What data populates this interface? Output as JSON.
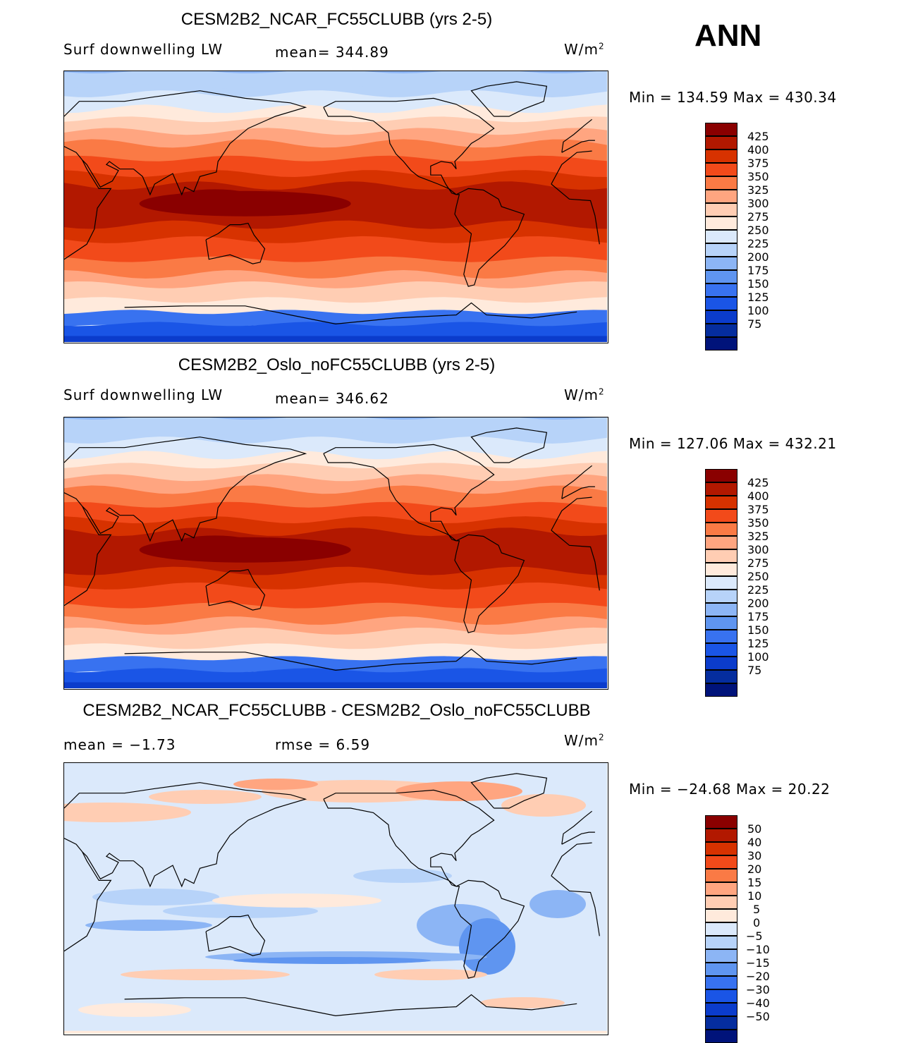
{
  "season": "ANN",
  "panels": [
    {
      "title": "CESM2B2_NCAR_FC55CLUBB (yrs 2-5)",
      "left_label": "Surf downwelling LW",
      "center_label": "mean= 344.89",
      "units": "W/m",
      "units_sup": "2",
      "minmax": "Min = 134.59 Max = 430.34",
      "cbar_colors": [
        "#8a0000",
        "#b21800",
        "#d73200",
        "#f24a1a",
        "#fa7a45",
        "#ffa580",
        "#ffcdb3",
        "#ffeadc",
        "#dbe9fb",
        "#b7d3f9",
        "#8cb5f5",
        "#5f95f0",
        "#3872f0",
        "#1a55e6",
        "#0b3ccc",
        "#052d9e",
        "#00137a"
      ],
      "cbar_labels": [
        "425",
        "400",
        "375",
        "350",
        "325",
        "300",
        "275",
        "250",
        "225",
        "200",
        "175",
        "150",
        "125",
        "100",
        "75"
      ],
      "map_style": "abs"
    },
    {
      "title": "CESM2B2_Oslo_noFC55CLUBB (yrs 2-5)",
      "left_label": "Surf downwelling LW",
      "center_label": "mean= 346.62",
      "units": "W/m",
      "units_sup": "2",
      "minmax": "Min = 127.06 Max = 432.21",
      "cbar_colors": [
        "#8a0000",
        "#b21800",
        "#d73200",
        "#f24a1a",
        "#fa7a45",
        "#ffa580",
        "#ffcdb3",
        "#ffeadc",
        "#dbe9fb",
        "#b7d3f9",
        "#8cb5f5",
        "#5f95f0",
        "#3872f0",
        "#1a55e6",
        "#0b3ccc",
        "#052d9e",
        "#00137a"
      ],
      "cbar_labels": [
        "425",
        "400",
        "375",
        "350",
        "325",
        "300",
        "275",
        "250",
        "225",
        "200",
        "175",
        "150",
        "125",
        "100",
        "75"
      ],
      "map_style": "abs"
    },
    {
      "title": "CESM2B2_NCAR_FC55CLUBB - CESM2B2_Oslo_noFC55CLUBB",
      "left_label": "mean =  −1.73",
      "center_label": "rmse =   6.59",
      "units": "W/m",
      "units_sup": "2",
      "minmax": "Min = −24.68 Max =  20.22",
      "cbar_colors": [
        "#8a0000",
        "#b21800",
        "#d73200",
        "#f24a1a",
        "#fa7a45",
        "#ffa580",
        "#ffcdb3",
        "#ffeadc",
        "#dbe9fb",
        "#b7d3f9",
        "#8cb5f5",
        "#5f95f0",
        "#3872f0",
        "#1a55e6",
        "#0b3ccc",
        "#052d9e",
        "#00137a"
      ],
      "cbar_labels": [
        "50",
        "40",
        "30",
        "20",
        "15",
        "10",
        "5",
        "0",
        "−5",
        "−10",
        "−15",
        "−20",
        "−30",
        "−40",
        "−50"
      ],
      "map_style": "diff"
    }
  ]
}
